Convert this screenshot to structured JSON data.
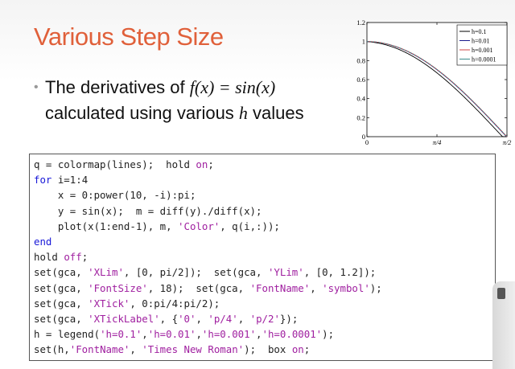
{
  "slide": {
    "title": "Various Step Size",
    "bullet_line1_prefix": "The derivatives of ",
    "bullet_line1_math": "f(x) = sin(x)",
    "bullet_line2_prefix": "calculated using various ",
    "bullet_line2_math": "h",
    "bullet_line2_suffix": " values"
  },
  "chart_data": {
    "type": "line",
    "title": "",
    "xlabel": "",
    "ylabel": "",
    "xlim": [
      0,
      1.5708
    ],
    "ylim": [
      0,
      1.2
    ],
    "x_ticks": [
      0,
      0.7854,
      1.5708
    ],
    "x_tick_labels": [
      "0",
      "π/4",
      "π/2"
    ],
    "y_ticks": [
      0,
      0.2,
      0.4,
      0.6,
      0.8,
      1,
      1.2
    ],
    "y_tick_labels": [
      "0",
      "0.2",
      "0.4",
      "0.6",
      "0.8",
      "1",
      "1.2"
    ],
    "legend_position": "top-right",
    "box": true,
    "series": [
      {
        "name": "h=0.1",
        "h": 0.1,
        "color": "#000000"
      },
      {
        "name": "h=0.01",
        "h": 0.01,
        "color": "#1a1a8c"
      },
      {
        "name": "h=0.001",
        "h": 0.001,
        "color": "#cc4444"
      },
      {
        "name": "h=0.0001",
        "h": 0.0001,
        "color": "#3a8a8a"
      }
    ]
  },
  "code_lines": [
    [
      {
        "t": "q = colormap(lines);  hold "
      },
      {
        "t": "on",
        "c": "st"
      },
      {
        "t": ";"
      }
    ],
    [
      {
        "t": "for",
        "c": "kw"
      },
      {
        "t": " i=1:4"
      }
    ],
    [
      {
        "t": "    x = 0:power(10, -i):pi;"
      }
    ],
    [
      {
        "t": "    y = sin(x);  m = diff(y)./diff(x);"
      }
    ],
    [
      {
        "t": "    plot(x(1:end-1), m, "
      },
      {
        "t": "'Color'",
        "c": "st"
      },
      {
        "t": ", q(i,:));"
      }
    ],
    [
      {
        "t": "end",
        "c": "kw"
      }
    ],
    [
      {
        "t": "hold "
      },
      {
        "t": "off",
        "c": "st"
      },
      {
        "t": ";"
      }
    ],
    [
      {
        "t": "set(gca, "
      },
      {
        "t": "'XLim'",
        "c": "st"
      },
      {
        "t": ", [0, pi/2]);  set(gca, "
      },
      {
        "t": "'YLim'",
        "c": "st"
      },
      {
        "t": ", [0, 1.2]);"
      }
    ],
    [
      {
        "t": "set(gca, "
      },
      {
        "t": "'FontSize'",
        "c": "st"
      },
      {
        "t": ", 18);  set(gca, "
      },
      {
        "t": "'FontName'",
        "c": "st"
      },
      {
        "t": ", "
      },
      {
        "t": "'symbol'",
        "c": "st"
      },
      {
        "t": ");"
      }
    ],
    [
      {
        "t": "set(gca, "
      },
      {
        "t": "'XTick'",
        "c": "st"
      },
      {
        "t": ", 0:pi/4:pi/2);"
      }
    ],
    [
      {
        "t": "set(gca, "
      },
      {
        "t": "'XTickLabel'",
        "c": "st"
      },
      {
        "t": ", {"
      },
      {
        "t": "'0'",
        "c": "st"
      },
      {
        "t": ", "
      },
      {
        "t": "'p/4'",
        "c": "st"
      },
      {
        "t": ", "
      },
      {
        "t": "'p/2'",
        "c": "st"
      },
      {
        "t": "});"
      }
    ],
    [
      {
        "t": "h = legend("
      },
      {
        "t": "'h=0.1'",
        "c": "st"
      },
      {
        "t": ","
      },
      {
        "t": "'h=0.01'",
        "c": "st"
      },
      {
        "t": ","
      },
      {
        "t": "'h=0.001'",
        "c": "st"
      },
      {
        "t": ","
      },
      {
        "t": "'h=0.0001'",
        "c": "st"
      },
      {
        "t": ");"
      }
    ],
    [
      {
        "t": "set(h,"
      },
      {
        "t": "'FontName'",
        "c": "st"
      },
      {
        "t": ", "
      },
      {
        "t": "'Times New Roman'",
        "c": "st"
      },
      {
        "t": ");  box "
      },
      {
        "t": "on",
        "c": "st"
      },
      {
        "t": ";"
      }
    ]
  ]
}
